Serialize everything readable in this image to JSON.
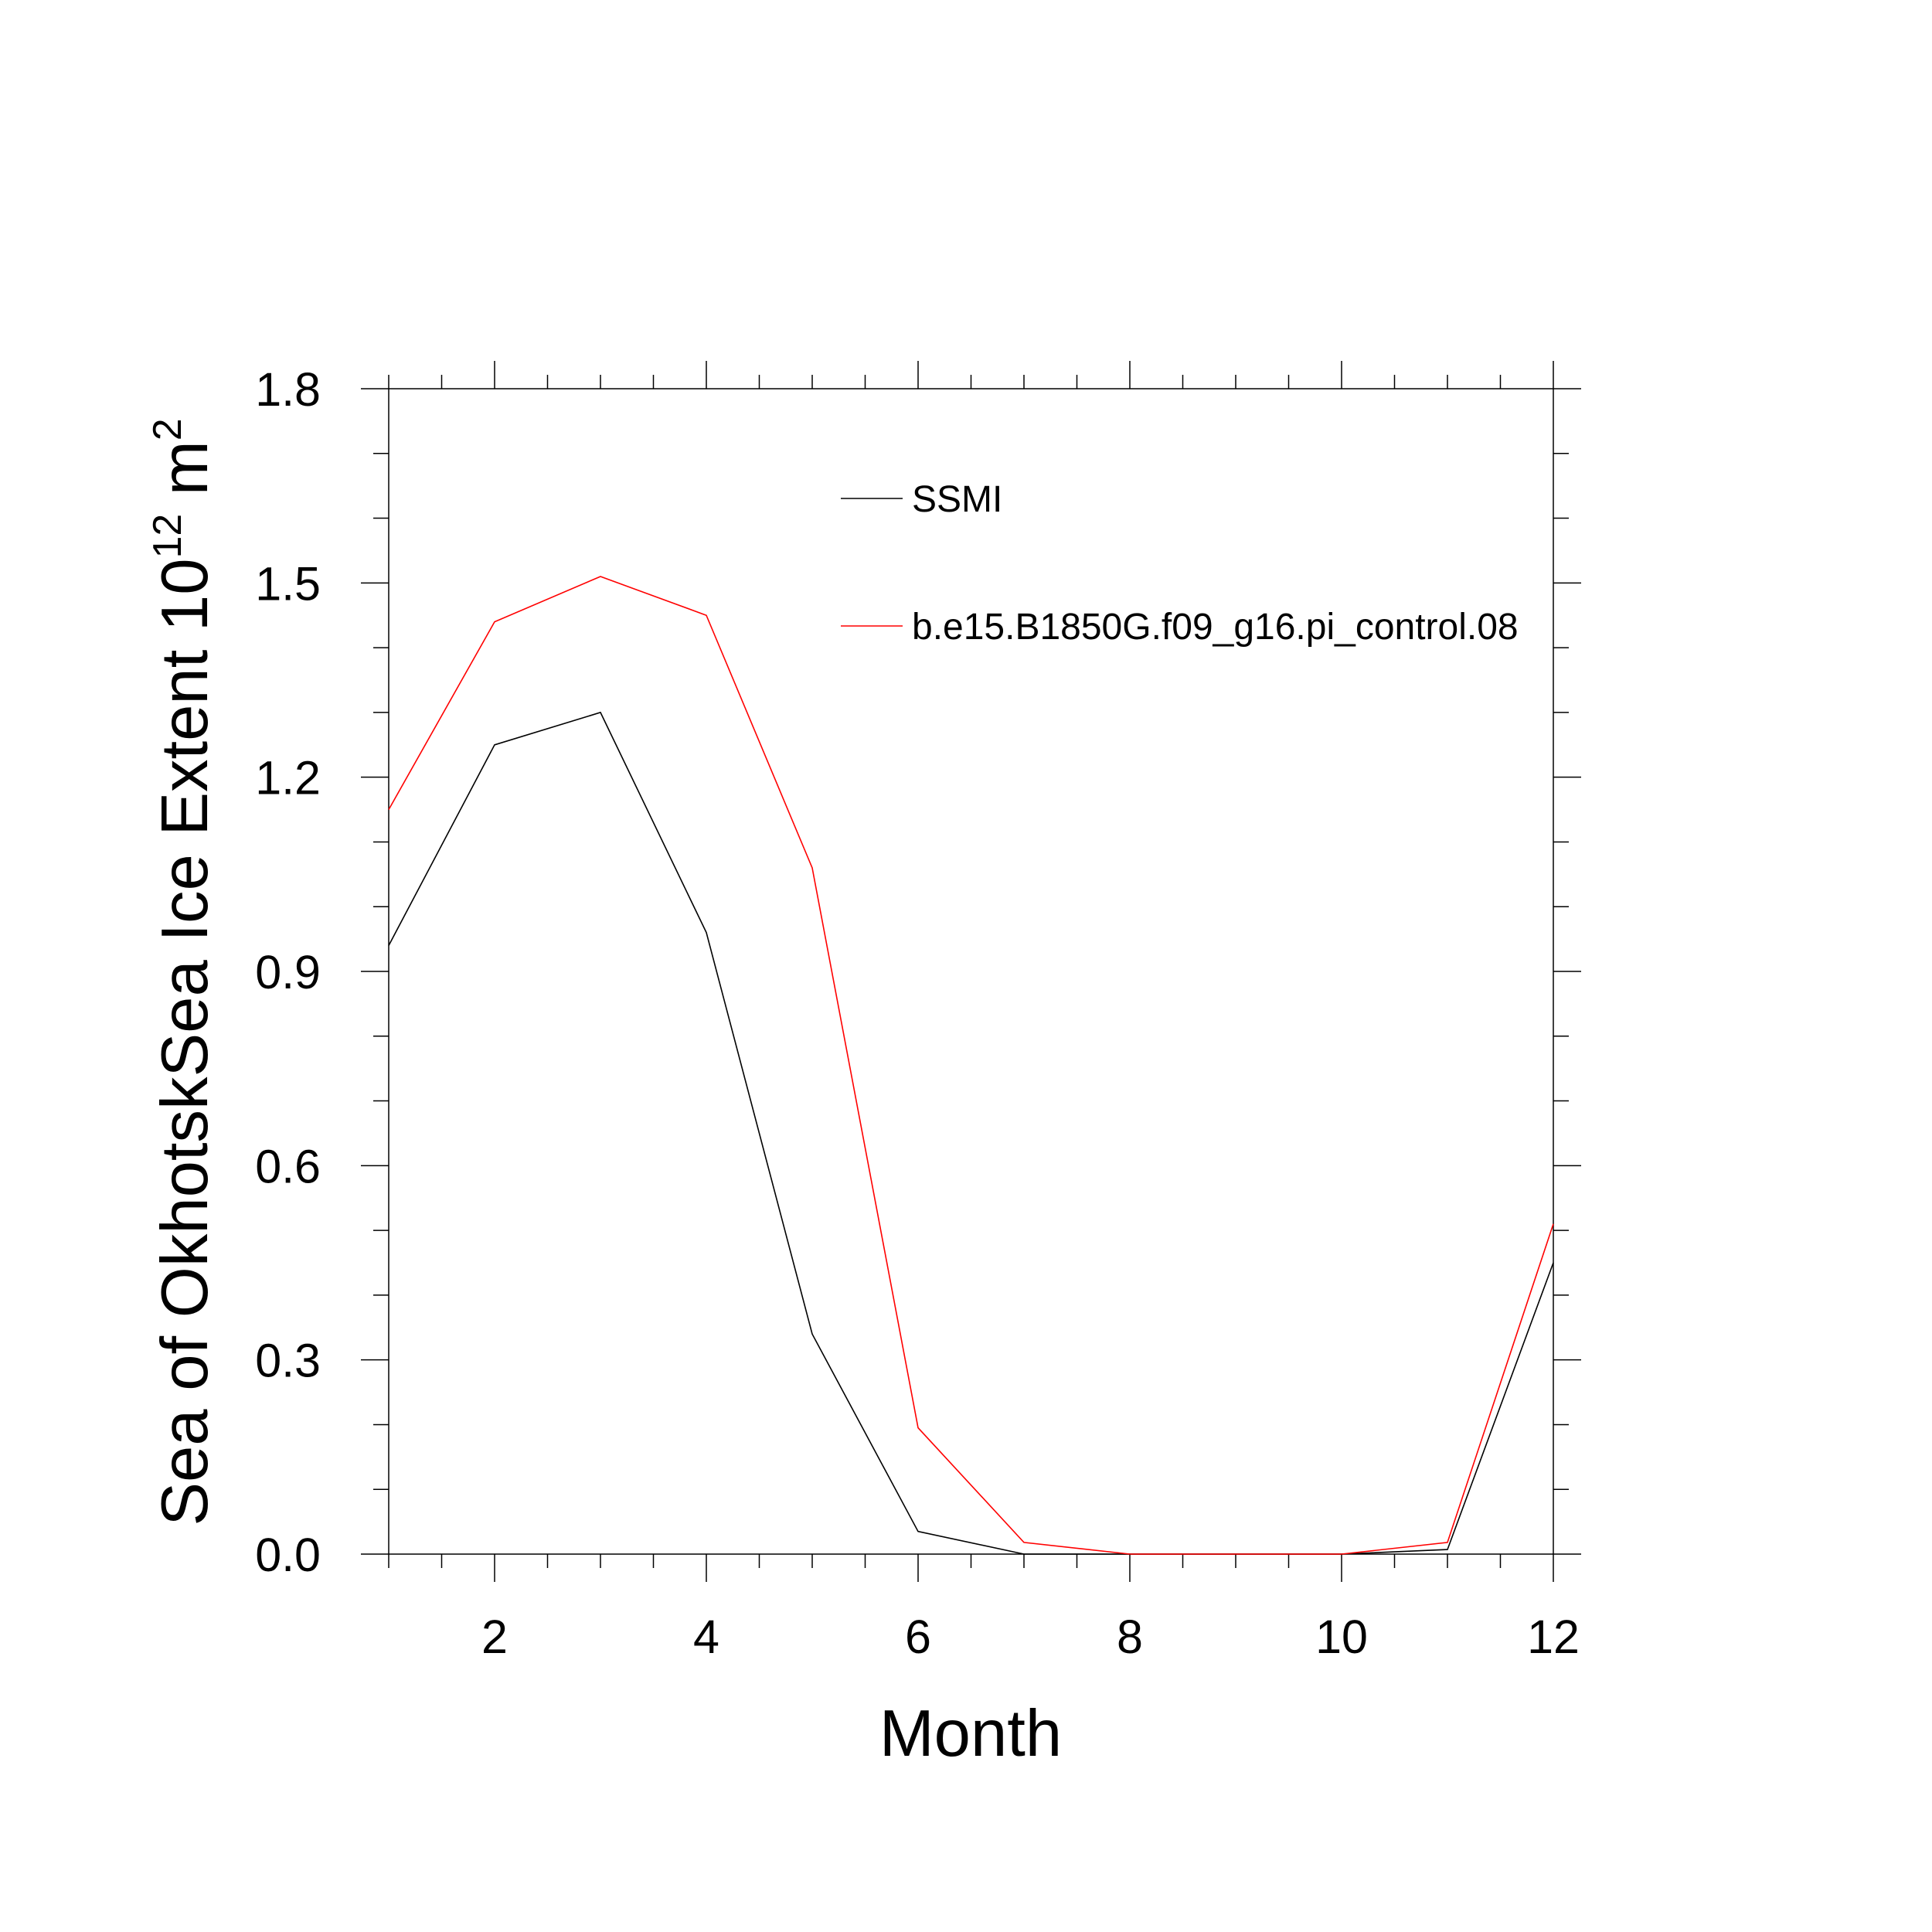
{
  "chart_data": {
    "type": "line",
    "x": [
      1,
      2,
      3,
      4,
      5,
      6,
      7,
      8,
      9,
      10,
      11,
      12
    ],
    "series": [
      {
        "name": "SSMI",
        "color": "#000000",
        "values": [
          0.94,
          1.25,
          1.3,
          0.96,
          0.34,
          0.035,
          0.0,
          0.0,
          0.0,
          0.0,
          0.007,
          0.45
        ]
      },
      {
        "name": "b.e15.B1850G.f09_g16.pi_control.08",
        "color": "#ff0000",
        "values": [
          1.15,
          1.44,
          1.51,
          1.45,
          1.06,
          0.195,
          0.018,
          0.0,
          0.0,
          0.0,
          0.018,
          0.51
        ]
      }
    ],
    "xlabel": "Month",
    "ylabel": {
      "main": "Sea of OkhotskSea Ice Extent 10",
      "exponent": "12",
      "unit": " m",
      "unit_exponent": "2"
    },
    "xlim": [
      1,
      12
    ],
    "ylim": [
      0,
      1.8
    ],
    "xticks": [
      2,
      4,
      6,
      8,
      10,
      12
    ],
    "xtick_labels": [
      "2",
      "4",
      "6",
      "8",
      "10",
      "12"
    ],
    "yticks": [
      0,
      0.3,
      0.6,
      0.9,
      1.2,
      1.5,
      1.8
    ],
    "ytick_labels": [
      "0.0",
      "0.3",
      "0.6",
      "0.9",
      "1.2",
      "1.5",
      "1.8"
    ],
    "grid": false,
    "legend_position": "top-right"
  }
}
